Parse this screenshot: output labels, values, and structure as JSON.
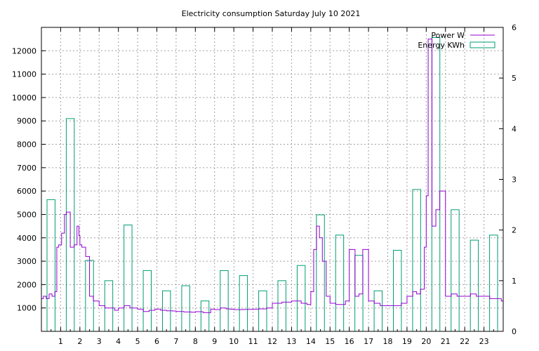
{
  "chart_data": {
    "type": "line",
    "title": "Electricity consumption Saturday July 10 2021",
    "xlabel": "",
    "ylabel": "",
    "y2label": "",
    "x_range": [
      0,
      24
    ],
    "ylim": [
      0,
      13000
    ],
    "y2lim": [
      0,
      6
    ],
    "x_ticks": [
      1,
      2,
      3,
      4,
      5,
      6,
      7,
      8,
      9,
      10,
      11,
      12,
      13,
      14,
      15,
      16,
      17,
      18,
      19,
      20,
      21,
      22,
      23
    ],
    "y_ticks": [
      1000,
      2000,
      3000,
      4000,
      5000,
      6000,
      7000,
      8000,
      9000,
      10000,
      11000,
      12000
    ],
    "y2_ticks": [
      0,
      1,
      2,
      3,
      4,
      5,
      6
    ],
    "grid": true,
    "legend_position": "top-right",
    "legend": [
      {
        "label": "Power W",
        "color": "#9400d3",
        "style": "line"
      },
      {
        "label": "Energy KWh",
        "color": "#009e73",
        "style": "box"
      }
    ],
    "series": [
      {
        "name": "Power W",
        "axis": "y",
        "color": "#9400d3",
        "style": "steps",
        "x": [
          0.0,
          0.1,
          0.25,
          0.4,
          0.55,
          0.7,
          0.8,
          0.9,
          1.05,
          1.2,
          1.3,
          1.5,
          1.7,
          1.85,
          1.95,
          2.0,
          2.1,
          2.3,
          2.5,
          2.7,
          3.0,
          3.3,
          3.5,
          3.8,
          4.0,
          4.3,
          4.6,
          4.8,
          5.0,
          5.3,
          5.6,
          5.9,
          6.2,
          6.5,
          6.8,
          7.0,
          7.4,
          7.8,
          8.0,
          8.4,
          8.8,
          9.0,
          9.3,
          9.6,
          9.8,
          10.0,
          10.5,
          11.0,
          11.3,
          11.7,
          12.0,
          12.5,
          13.0,
          13.5,
          13.8,
          14.0,
          14.15,
          14.3,
          14.45,
          14.6,
          14.8,
          15.0,
          15.3,
          15.6,
          15.8,
          16.0,
          16.3,
          16.5,
          16.7,
          17.0,
          17.3,
          17.6,
          18.0,
          18.3,
          18.7,
          19.0,
          19.3,
          19.5,
          19.7,
          19.9,
          20.0,
          20.1,
          20.3,
          20.5,
          20.7,
          21.0,
          21.3,
          21.6,
          22.0,
          22.3,
          22.6,
          23.0,
          23.3,
          23.6,
          23.9
        ],
        "y": [
          1400,
          1500,
          1400,
          1600,
          1500,
          1700,
          3600,
          3700,
          4200,
          5000,
          5100,
          3600,
          3700,
          4500,
          4100,
          3700,
          3600,
          3200,
          1500,
          1300,
          1100,
          1000,
          1000,
          900,
          1000,
          1100,
          1000,
          1000,
          950,
          850,
          900,
          950,
          900,
          880,
          870,
          850,
          830,
          820,
          840,
          800,
          950,
          930,
          1000,
          960,
          950,
          930,
          940,
          950,
          960,
          1000,
          1200,
          1250,
          1300,
          1200,
          1150,
          1700,
          3500,
          4500,
          4000,
          3000,
          1500,
          1200,
          1150,
          1150,
          1300,
          3500,
          1500,
          1600,
          3500,
          1300,
          1200,
          1100,
          1100,
          1100,
          1200,
          1500,
          1700,
          1600,
          1800,
          3600,
          5800,
          12500,
          4500,
          5200,
          6000,
          1500,
          1600,
          1500,
          1500,
          1600,
          1500,
          1500,
          1400,
          1400,
          1300
        ]
      },
      {
        "name": "Energy KWh",
        "axis": "y2",
        "color": "#009e73",
        "style": "boxes",
        "x": [
          0,
          1,
          2,
          3,
          4,
          5,
          6,
          7,
          8,
          9,
          10,
          11,
          12,
          13,
          14,
          15,
          16,
          17,
          18,
          19,
          20,
          21,
          22,
          23
        ],
        "values": [
          2.6,
          4.2,
          1.4,
          1.0,
          2.1,
          1.2,
          0.8,
          0.9,
          0.6,
          1.2,
          1.1,
          0.8,
          1.0,
          1.3,
          2.3,
          1.9,
          1.5,
          0.8,
          1.6,
          2.8,
          5.8,
          2.4,
          1.8,
          1.9
        ]
      }
    ]
  }
}
